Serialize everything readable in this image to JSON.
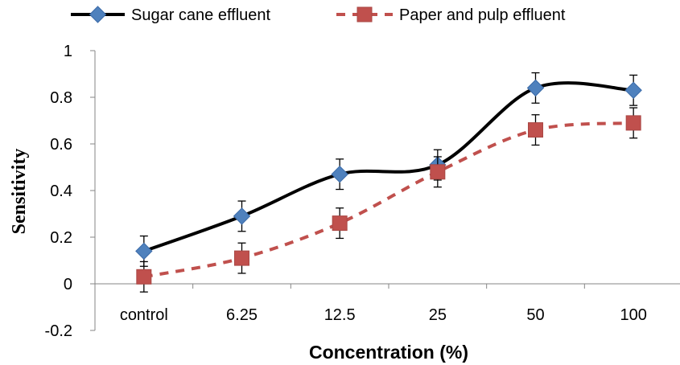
{
  "chart_data": {
    "type": "line",
    "title": "",
    "xlabel": "Concentration (%)",
    "ylabel": "Sensitivity",
    "categories": [
      "control",
      "6.25",
      "12.5",
      "25",
      "50",
      "100"
    ],
    "ylim": [
      -0.2,
      1
    ],
    "yticks": [
      "-0.2",
      "0",
      "0.2",
      "0.4",
      "0.6",
      "0.8",
      "1"
    ],
    "grid": false,
    "legend_position": "top",
    "series": [
      {
        "name": "Sugar cane effluent",
        "values": [
          0.14,
          0.29,
          0.47,
          0.51,
          0.84,
          0.83
        ],
        "errors": [
          0.065,
          0.065,
          0.065,
          0.065,
          0.065,
          0.065
        ],
        "color": "#000000",
        "marker": "diamond",
        "marker_color": "#4F81BD",
        "line_style": "solid"
      },
      {
        "name": "Paper and pulp effluent",
        "values": [
          0.03,
          0.11,
          0.26,
          0.48,
          0.66,
          0.69
        ],
        "errors": [
          0.065,
          0.065,
          0.065,
          0.065,
          0.065,
          0.065
        ],
        "color": "#C0504D",
        "marker": "square",
        "marker_color": "#C0504D",
        "line_style": "dashed"
      }
    ]
  }
}
